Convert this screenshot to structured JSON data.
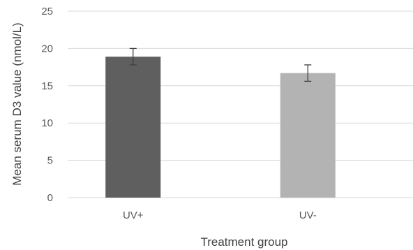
{
  "chart_data": {
    "type": "bar",
    "categories": [
      "UV+",
      "UV-"
    ],
    "values": [
      18.9,
      16.7
    ],
    "error": [
      1.1,
      1.1
    ],
    "bar_colors": [
      "#5f5f5f",
      "#b3b3b3"
    ],
    "xlabel": "Treatment group",
    "ylabel": "Mean serum D3 value (nmol/L)",
    "ylim": [
      0,
      25
    ],
    "yticks": [
      0,
      5,
      10,
      15,
      20,
      25
    ],
    "grid": true,
    "gridline_color": "#d9d9d9"
  }
}
